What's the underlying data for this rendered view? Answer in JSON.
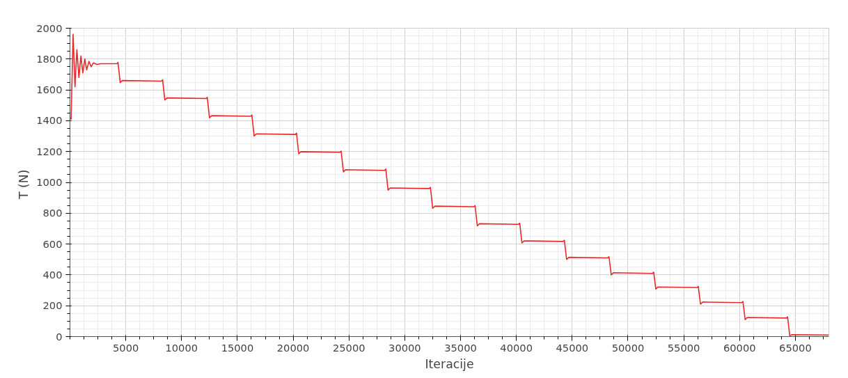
{
  "chart_data": {
    "type": "line",
    "xlabel": "Iteracije",
    "ylabel": "T  (N)",
    "xlim": [
      0,
      68000
    ],
    "ylim": [
      0,
      2000
    ],
    "xticks": [
      5000,
      10000,
      15000,
      20000,
      25000,
      30000,
      35000,
      40000,
      45000,
      50000,
      55000,
      60000,
      65000
    ],
    "yticks": [
      0,
      200,
      400,
      600,
      800,
      1000,
      1200,
      1400,
      1600,
      1800,
      2000
    ],
    "grid": true,
    "marker": "none",
    "line_style": "solid",
    "series": [
      {
        "color": "#e8282b",
        "x": [
          0,
          100,
          280,
          450,
          620,
          800,
          980,
          1150,
          1330,
          1500,
          1700,
          1900,
          2100,
          2400,
          2800,
          4200,
          4300,
          4500,
          4700,
          8200,
          8300,
          8500,
          8700,
          12200,
          12300,
          12500,
          12700,
          16200,
          16300,
          16500,
          16700,
          20200,
          20300,
          20500,
          20700,
          24200,
          24300,
          24500,
          24700,
          28200,
          28300,
          28500,
          28700,
          32200,
          32300,
          32500,
          32700,
          36200,
          36300,
          36500,
          36700,
          40200,
          40300,
          40500,
          40700,
          44200,
          44300,
          44500,
          44700,
          48200,
          48300,
          48500,
          48700,
          52200,
          52300,
          52500,
          52700,
          56200,
          56300,
          56500,
          56700,
          60200,
          60300,
          60500,
          60700,
          64200,
          64300,
          64500,
          64700,
          68000
        ],
        "values": [
          1420,
          1410,
          1960,
          1620,
          1860,
          1680,
          1820,
          1710,
          1800,
          1730,
          1785,
          1750,
          1775,
          1765,
          1770,
          1770,
          1778,
          1647,
          1661,
          1657,
          1665,
          1534,
          1548,
          1544,
          1552,
          1419,
          1433,
          1429,
          1437,
          1301,
          1315,
          1311,
          1319,
          1185,
          1199,
          1195,
          1203,
          1068,
          1082,
          1078,
          1086,
          950,
          964,
          960,
          968,
          832,
          846,
          842,
          850,
          718,
          732,
          728,
          736,
          607,
          621,
          617,
          625,
          500,
          514,
          510,
          518,
          400,
          414,
          410,
          418,
          308,
          322,
          318,
          326,
          210,
          224,
          220,
          228,
          110,
          124,
          120,
          128,
          5,
          12,
          10
        ]
      }
    ]
  }
}
